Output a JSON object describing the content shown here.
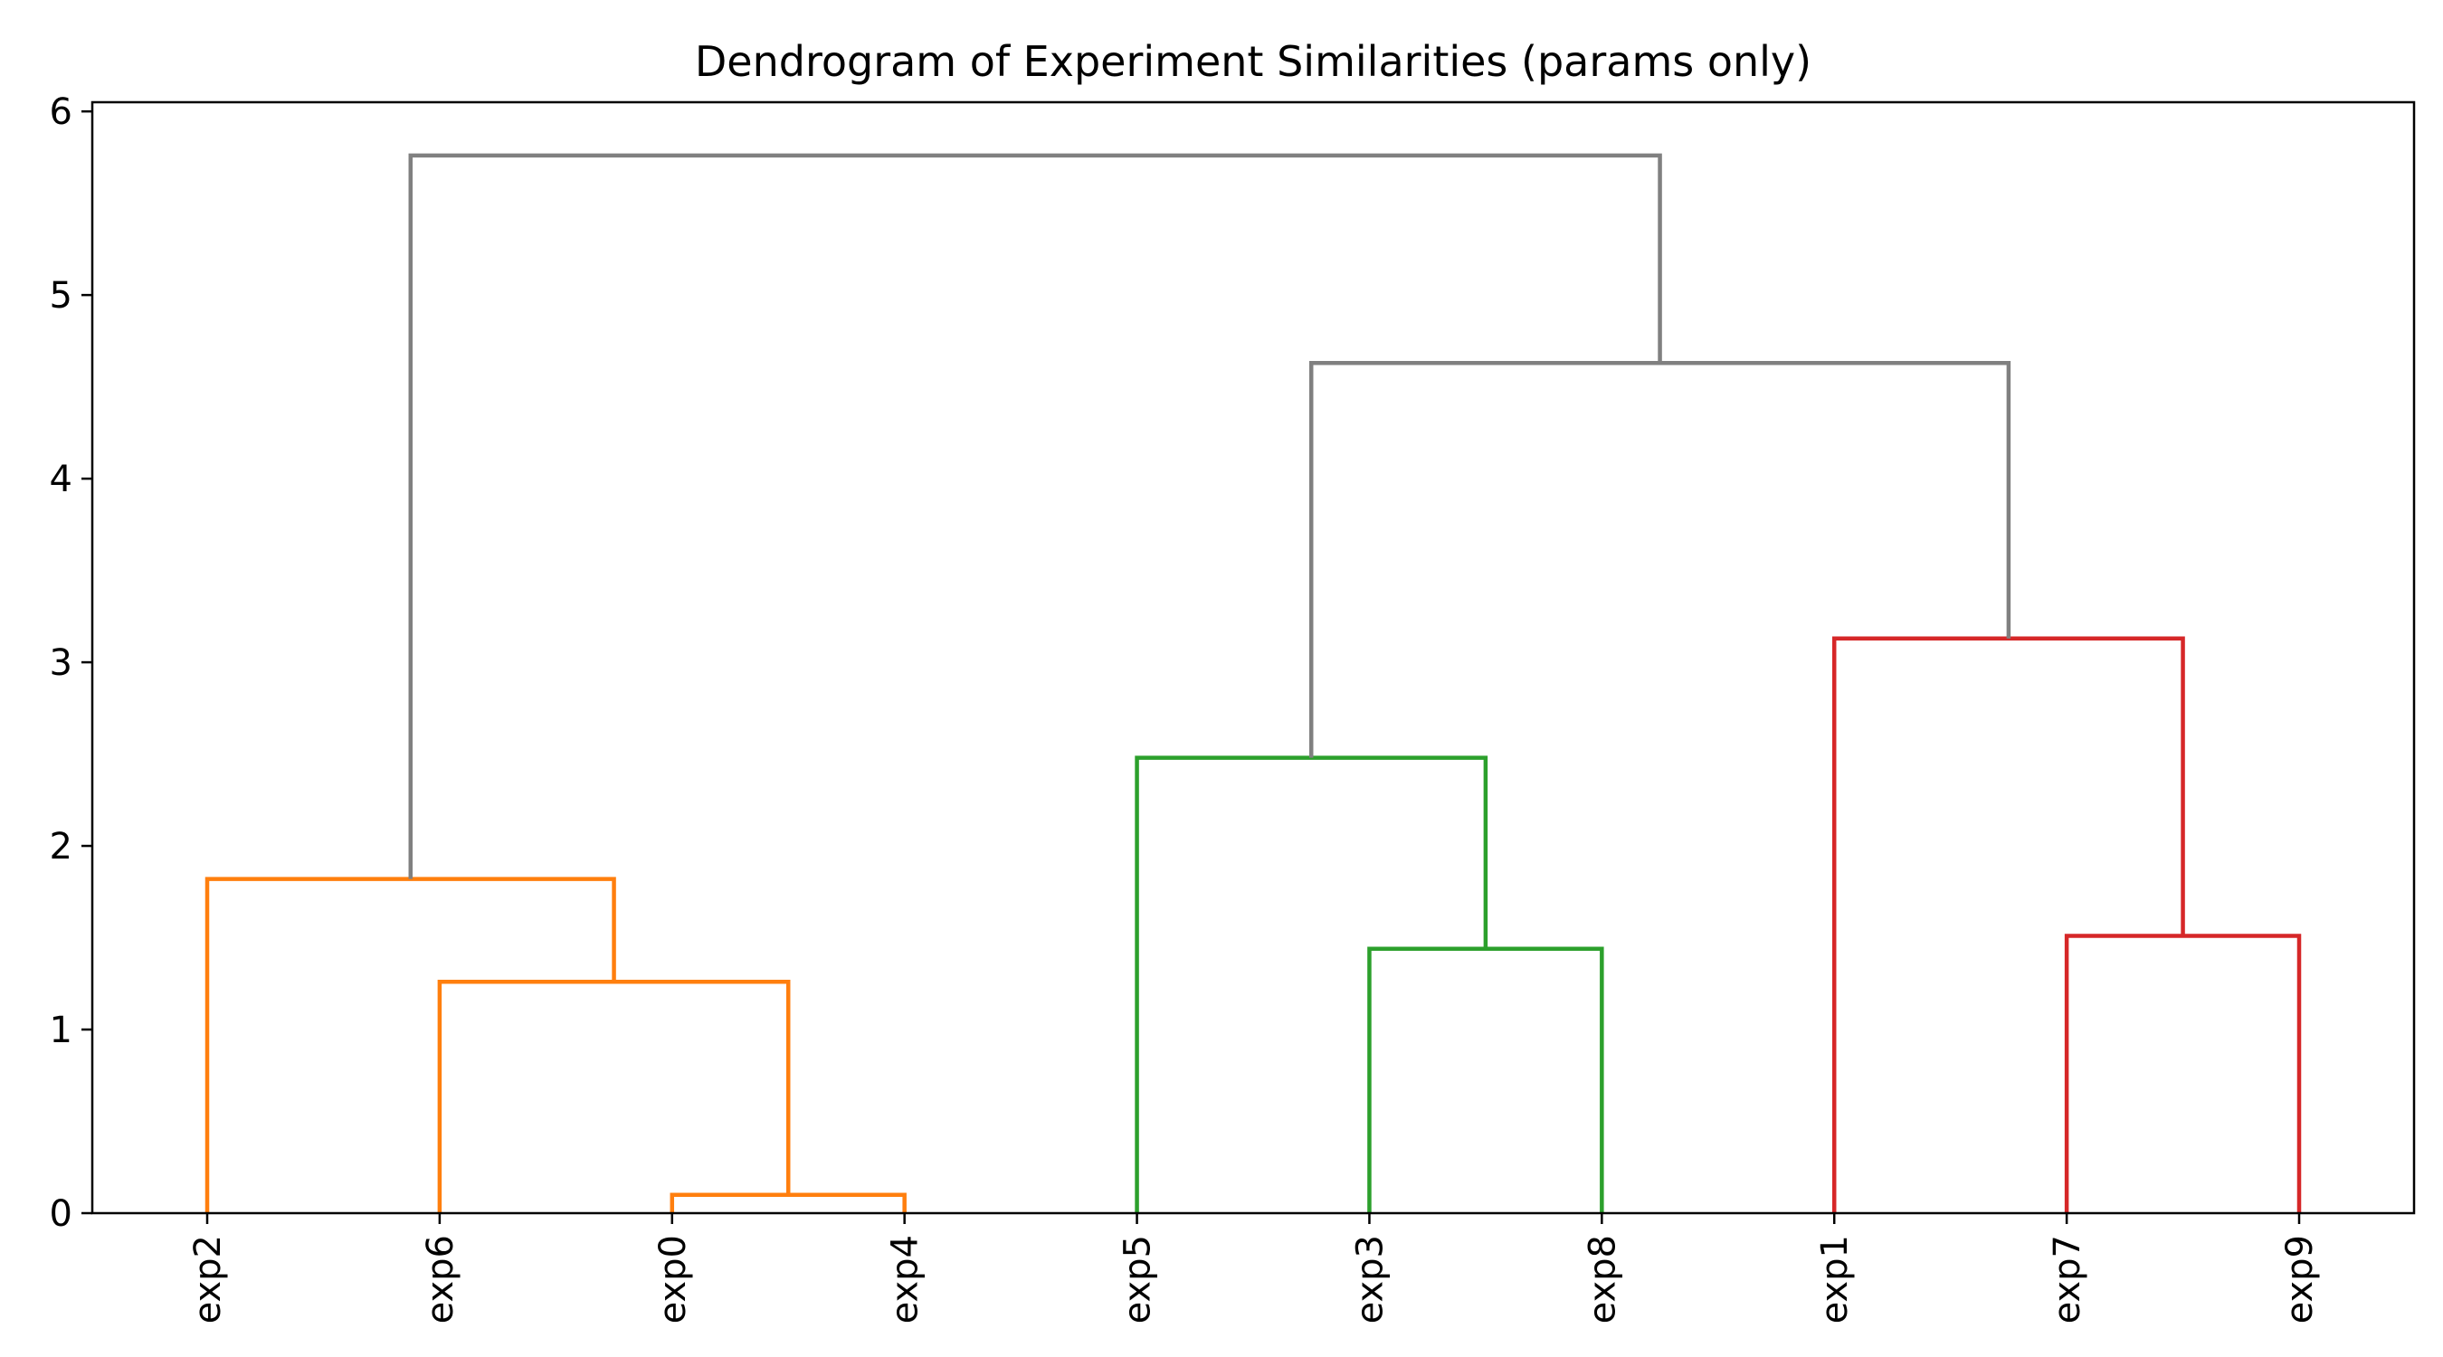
{
  "chart_data": {
    "type": "dendrogram",
    "title": "Dendrogram of Experiment Similarities (params only)",
    "xlabel": "",
    "ylabel": "",
    "ylim": [
      0,
      6.05
    ],
    "yticks": [
      0,
      1,
      2,
      3,
      4,
      5,
      6
    ],
    "grid": false,
    "leaves": [
      "exp2",
      "exp6",
      "exp0",
      "exp4",
      "exp5",
      "exp3",
      "exp8",
      "exp1",
      "exp7",
      "exp9"
    ],
    "colors": {
      "above_threshold": "#808080",
      "cluster_1": "#ff7f0e",
      "cluster_2": "#2ca02c",
      "cluster_3": "#d62728"
    },
    "merges": [
      {
        "left": "exp0",
        "right": "exp4",
        "height": 0.1,
        "color": "cluster_1"
      },
      {
        "left": "exp6",
        "right": "exp0+exp4",
        "height": 1.26,
        "color": "cluster_1"
      },
      {
        "left": "exp2",
        "right": "exp6+exp0+exp4",
        "height": 1.82,
        "color": "cluster_1"
      },
      {
        "left": "exp3",
        "right": "exp8",
        "height": 1.44,
        "color": "cluster_2"
      },
      {
        "left": "exp5",
        "right": "exp3+exp8",
        "height": 2.48,
        "color": "cluster_2"
      },
      {
        "left": "exp7",
        "right": "exp9",
        "height": 1.51,
        "color": "cluster_3"
      },
      {
        "left": "exp1",
        "right": "exp7+exp9",
        "height": 3.13,
        "color": "cluster_3"
      },
      {
        "left": "exp5+exp3+exp8",
        "right": "exp1+exp7+exp9",
        "height": 4.63,
        "color": "above_threshold"
      },
      {
        "left": "exp2+exp6+exp0+exp4",
        "right": "exp5+exp3+exp8+exp1+exp7+exp9",
        "height": 5.76,
        "color": "above_threshold"
      }
    ]
  }
}
